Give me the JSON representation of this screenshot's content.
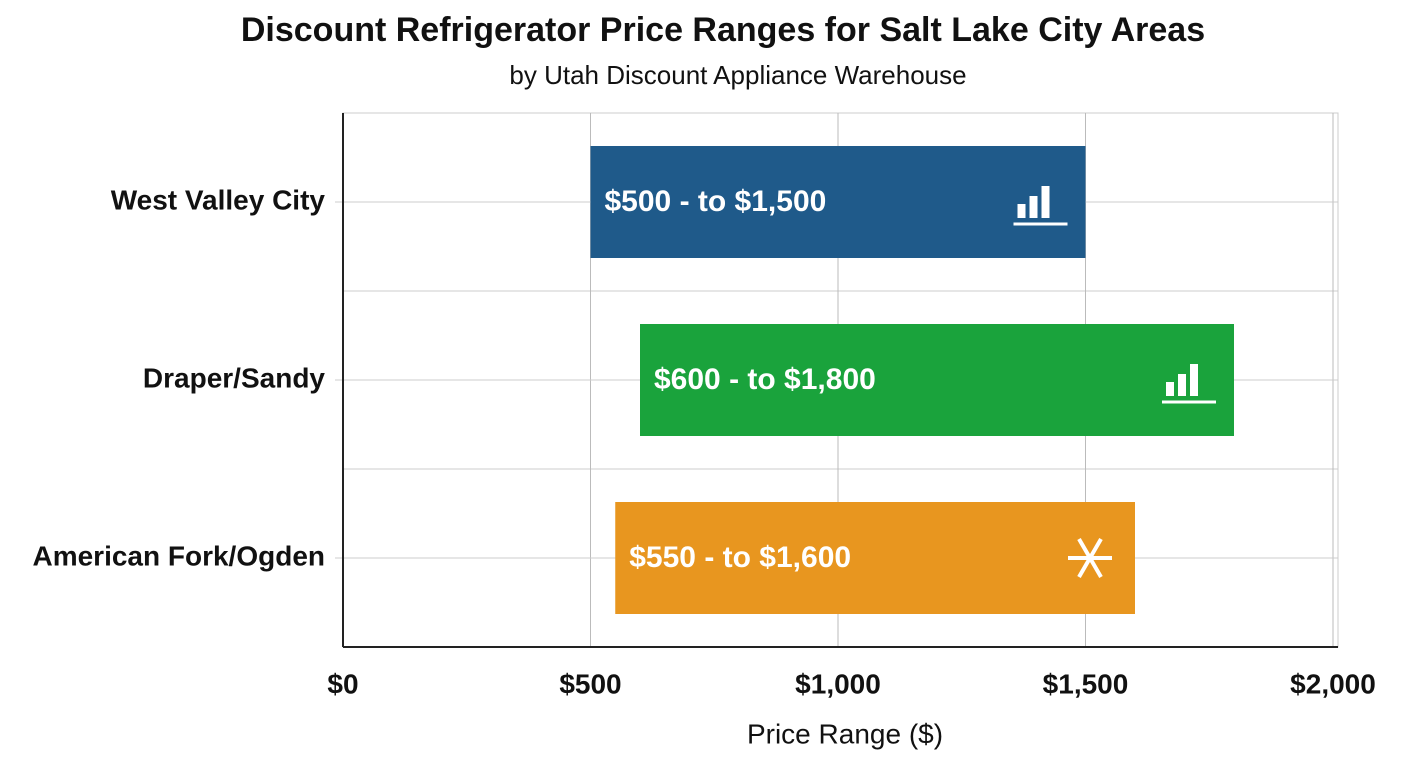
{
  "chart_data": {
    "type": "range_bar",
    "title": "Discount Refrigerator Price Ranges for Salt Lake City Areas",
    "subtitle": "by Utah Discount Appliance Warehouse",
    "x_label": "Price Range ($)",
    "categories": [
      "West Valley City",
      "Draper/Sandy",
      "American Fork/Ogden"
    ],
    "low": [
      500,
      600,
      550
    ],
    "high": [
      1500,
      1800,
      1600
    ],
    "value_labels": [
      "$500 - to $1,500",
      "$600 - to $1,800",
      "$550 - to $1,600"
    ],
    "colors": [
      "#1f5a8a",
      "#1aa33c",
      "#e8961f"
    ],
    "xlim": [
      0,
      2000
    ],
    "xticks": [
      {
        "value": 0,
        "label": "$0"
      },
      {
        "value": 500,
        "label": "$500"
      },
      {
        "value": 1000,
        "label": "$1,000"
      },
      {
        "value": 1500,
        "label": "$1,500"
      },
      {
        "value": 2000,
        "label": "$2,000"
      }
    ],
    "grid": true
  }
}
